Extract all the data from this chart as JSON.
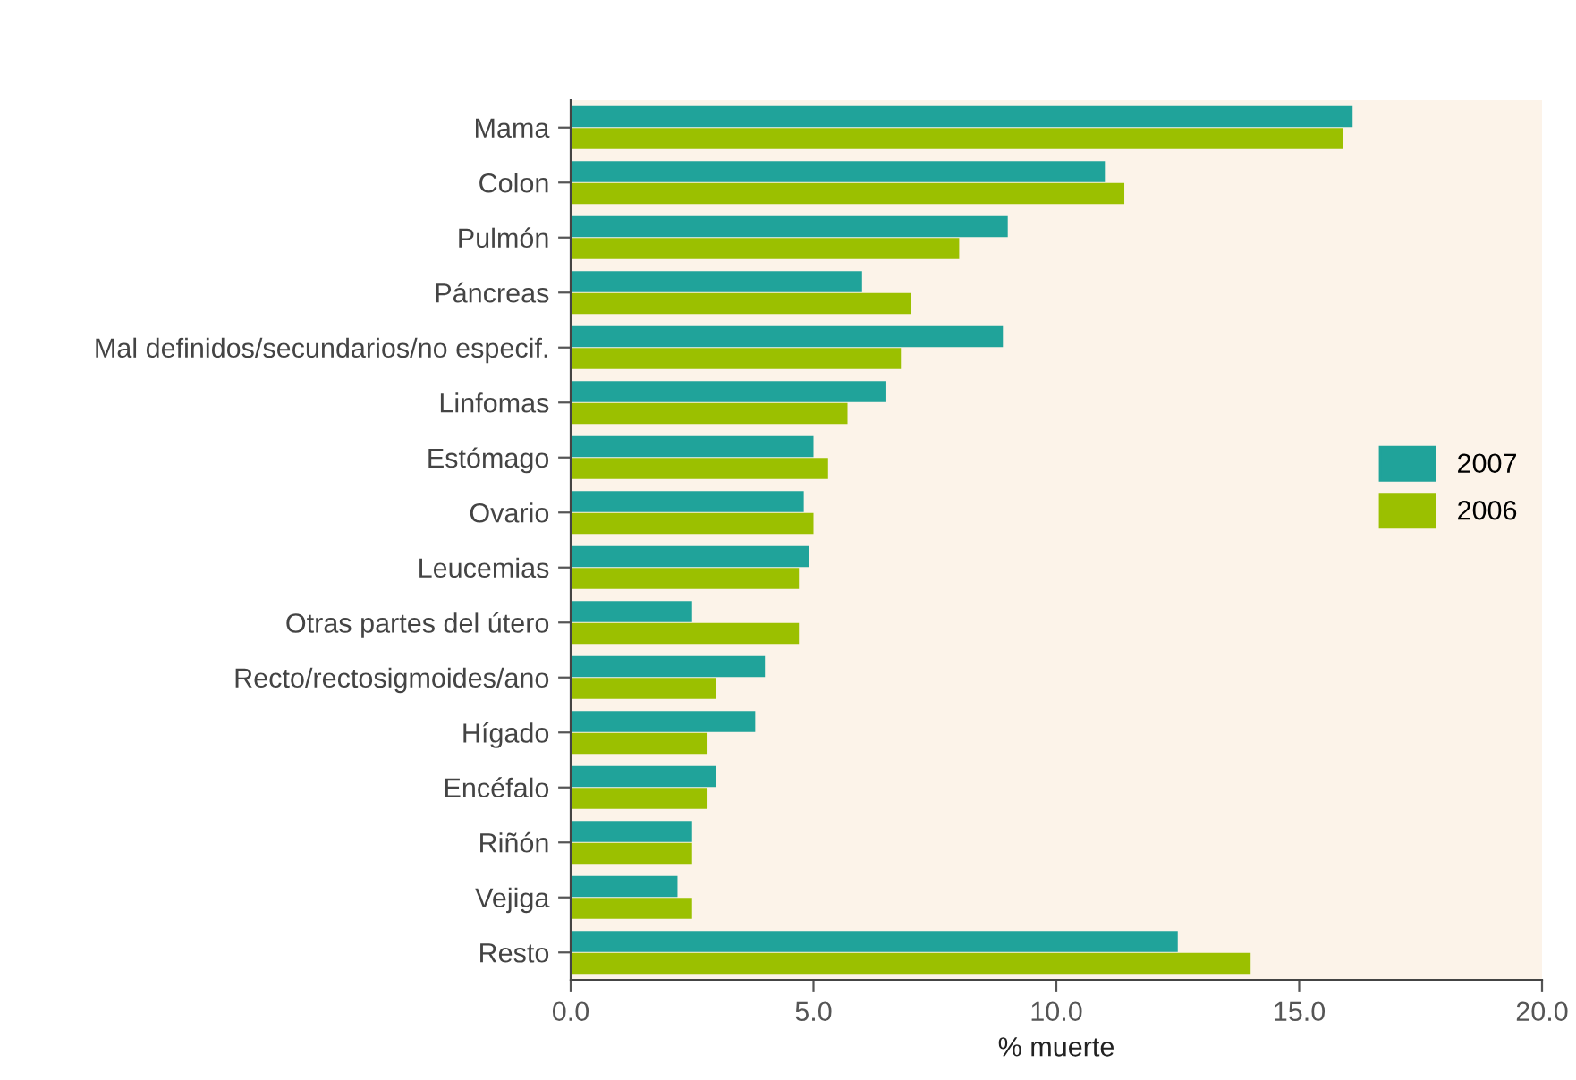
{
  "chart_data": {
    "type": "bar",
    "orientation": "horizontal",
    "xlabel": "% muerte",
    "categories": [
      "Mama",
      "Colon",
      "Pulmón",
      "Páncreas",
      "Mal definidos/secundarios/no especif.",
      "Linfomas",
      "Estómago",
      "Ovario",
      "Leucemias",
      "Otras partes del útero",
      "Recto/rectosigmoides/ano",
      "Hígado",
      "Encéfalo",
      "Riñón",
      "Vejiga",
      "Resto"
    ],
    "series": [
      {
        "name": "2007",
        "color": "#20a39a",
        "values": [
          16.1,
          11.0,
          9.0,
          6.0,
          8.9,
          6.5,
          5.0,
          4.8,
          4.9,
          2.5,
          4.0,
          3.8,
          3.0,
          2.5,
          2.2,
          12.5
        ]
      },
      {
        "name": "2006",
        "color": "#9bc000",
        "values": [
          15.9,
          11.4,
          8.0,
          7.0,
          6.8,
          5.7,
          5.3,
          5.0,
          4.7,
          4.7,
          3.0,
          2.8,
          2.8,
          2.5,
          2.5,
          14.0
        ]
      }
    ],
    "xlim": [
      0,
      20
    ],
    "xticks": [
      {
        "value": 0,
        "label": "0.0"
      },
      {
        "value": 5,
        "label": "5.0"
      },
      {
        "value": 10,
        "label": "10.0"
      },
      {
        "value": 15,
        "label": "15.0"
      },
      {
        "value": 20,
        "label": "20.0"
      }
    ],
    "grid": false,
    "legend": "right"
  }
}
